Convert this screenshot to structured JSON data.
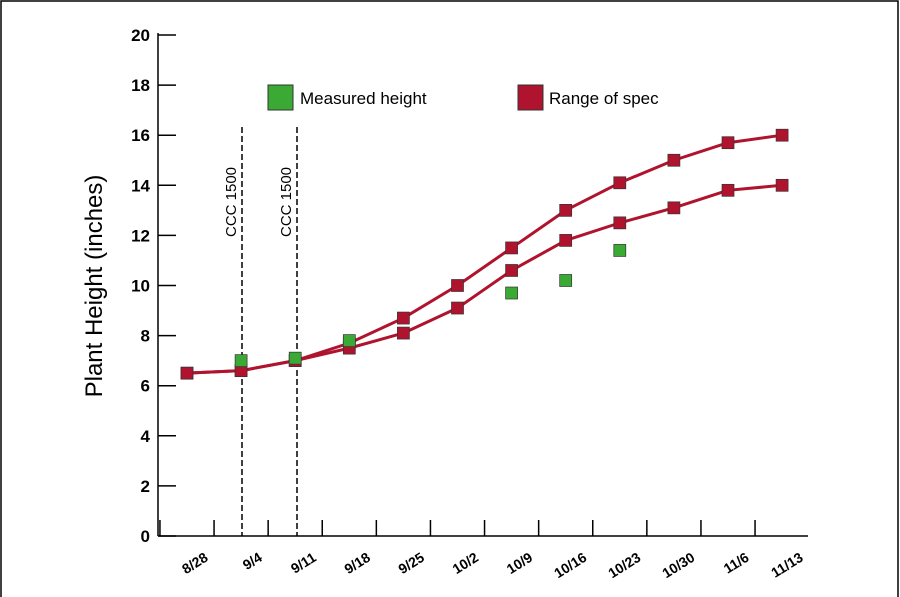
{
  "chart_data": {
    "type": "line",
    "ylabel": "Plant Height (inches)",
    "xlabel": "",
    "ylim": [
      0,
      20
    ],
    "y_ticks": [
      0,
      2,
      4,
      6,
      8,
      10,
      12,
      14,
      16,
      18,
      20
    ],
    "categories": [
      "8/28",
      "9/4",
      "9/11",
      "9/18",
      "9/25",
      "10/2",
      "10/9",
      "10/16",
      "10/23",
      "10/30",
      "11/6",
      "11/13"
    ],
    "legend": {
      "placement": "top",
      "entries": [
        {
          "label": "Measured height",
          "color": "#3aaa35",
          "marker": "square"
        },
        {
          "label": "Range of spec",
          "color": "#b0132e",
          "marker": "square"
        }
      ]
    },
    "series": [
      {
        "name": "Range of spec",
        "role": "upper",
        "color": "#b0132e",
        "points": [
          {
            "x": "8/28",
            "y": 6.5
          },
          {
            "x": "9/4",
            "y": 6.6
          },
          {
            "x": "9/11",
            "y": 7.0
          },
          {
            "x": "9/18",
            "y": 7.7
          },
          {
            "x": "9/25",
            "y": 8.7
          },
          {
            "x": "10/2",
            "y": 10.0
          },
          {
            "x": "10/9",
            "y": 11.5
          },
          {
            "x": "10/16",
            "y": 13.0
          },
          {
            "x": "10/23",
            "y": 14.1
          },
          {
            "x": "10/30",
            "y": 15.0
          },
          {
            "x": "11/6",
            "y": 15.7
          },
          {
            "x": "11/13",
            "y": 16.0
          }
        ]
      },
      {
        "name": "Range of spec",
        "role": "lower",
        "color": "#b0132e",
        "points": [
          {
            "x": "8/28",
            "y": 6.5
          },
          {
            "x": "9/4",
            "y": 6.6
          },
          {
            "x": "9/11",
            "y": 7.0
          },
          {
            "x": "9/18",
            "y": 7.5
          },
          {
            "x": "9/25",
            "y": 8.1
          },
          {
            "x": "10/2",
            "y": 9.1
          },
          {
            "x": "10/9",
            "y": 10.6
          },
          {
            "x": "10/16",
            "y": 11.8
          },
          {
            "x": "10/23",
            "y": 12.5
          },
          {
            "x": "10/30",
            "y": 13.1
          },
          {
            "x": "11/6",
            "y": 13.8
          },
          {
            "x": "11/13",
            "y": 14.0
          }
        ]
      },
      {
        "name": "Measured height",
        "color": "#3aaa35",
        "points": [
          {
            "x": "9/4",
            "y": 7.0
          },
          {
            "x": "9/11",
            "y": 7.1
          },
          {
            "x": "9/18",
            "y": 7.8
          },
          {
            "x": "10/9",
            "y": 9.7
          },
          {
            "x": "10/16",
            "y": 10.2
          },
          {
            "x": "10/23",
            "y": 11.4
          }
        ]
      }
    ],
    "annotations": [
      {
        "label": "CCC 1500",
        "x": "9/4"
      },
      {
        "label": "CCC 1500",
        "x": "9/11"
      }
    ],
    "grid": false
  }
}
